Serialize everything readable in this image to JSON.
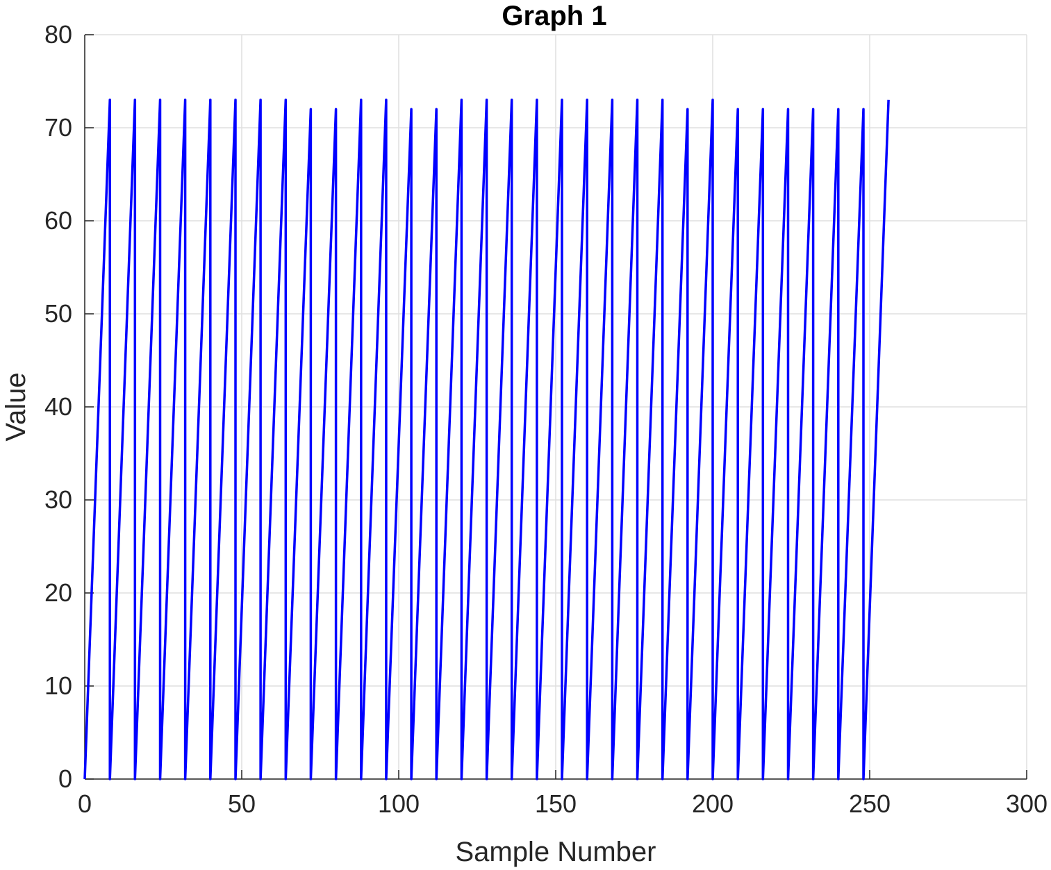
{
  "chart_data": {
    "type": "line",
    "title": "Graph  1",
    "xlabel": "Sample Number",
    "ylabel": "Value",
    "xlim": [
      0,
      300
    ],
    "ylim": [
      0,
      80
    ],
    "xticks": [
      0,
      50,
      100,
      150,
      200,
      250,
      300
    ],
    "yticks": [
      0,
      10,
      20,
      30,
      40,
      50,
      60,
      70,
      80
    ],
    "grid": true,
    "line_color": "#0000ff",
    "series": [
      {
        "x": [
          0,
          8,
          8,
          16,
          16,
          24,
          24,
          32,
          32,
          40,
          40,
          48,
          48,
          56,
          56,
          64,
          64,
          72,
          72,
          80,
          80,
          88,
          88,
          96,
          96,
          104,
          104,
          112,
          112,
          120,
          120,
          128,
          128,
          136,
          136,
          144,
          144,
          152,
          152,
          160,
          160,
          168,
          168,
          176,
          176,
          184,
          184,
          192,
          192,
          200,
          200,
          208,
          208,
          216,
          216,
          224,
          224,
          232,
          232,
          240,
          240,
          248,
          248,
          256
        ],
        "y": [
          0,
          73,
          0,
          73,
          0,
          73,
          0,
          73,
          0,
          73,
          0,
          73,
          0,
          73,
          0,
          73,
          0,
          72,
          0,
          72,
          0,
          73,
          0,
          73,
          0,
          72,
          0,
          72,
          0,
          73,
          0,
          73,
          0,
          73,
          0,
          73,
          0,
          73,
          0,
          73,
          0,
          73,
          0,
          73,
          0,
          73,
          0,
          72,
          0,
          73,
          0,
          72,
          0,
          72,
          0,
          72,
          0,
          72,
          0,
          72,
          0,
          72,
          0,
          73
        ]
      }
    ]
  }
}
